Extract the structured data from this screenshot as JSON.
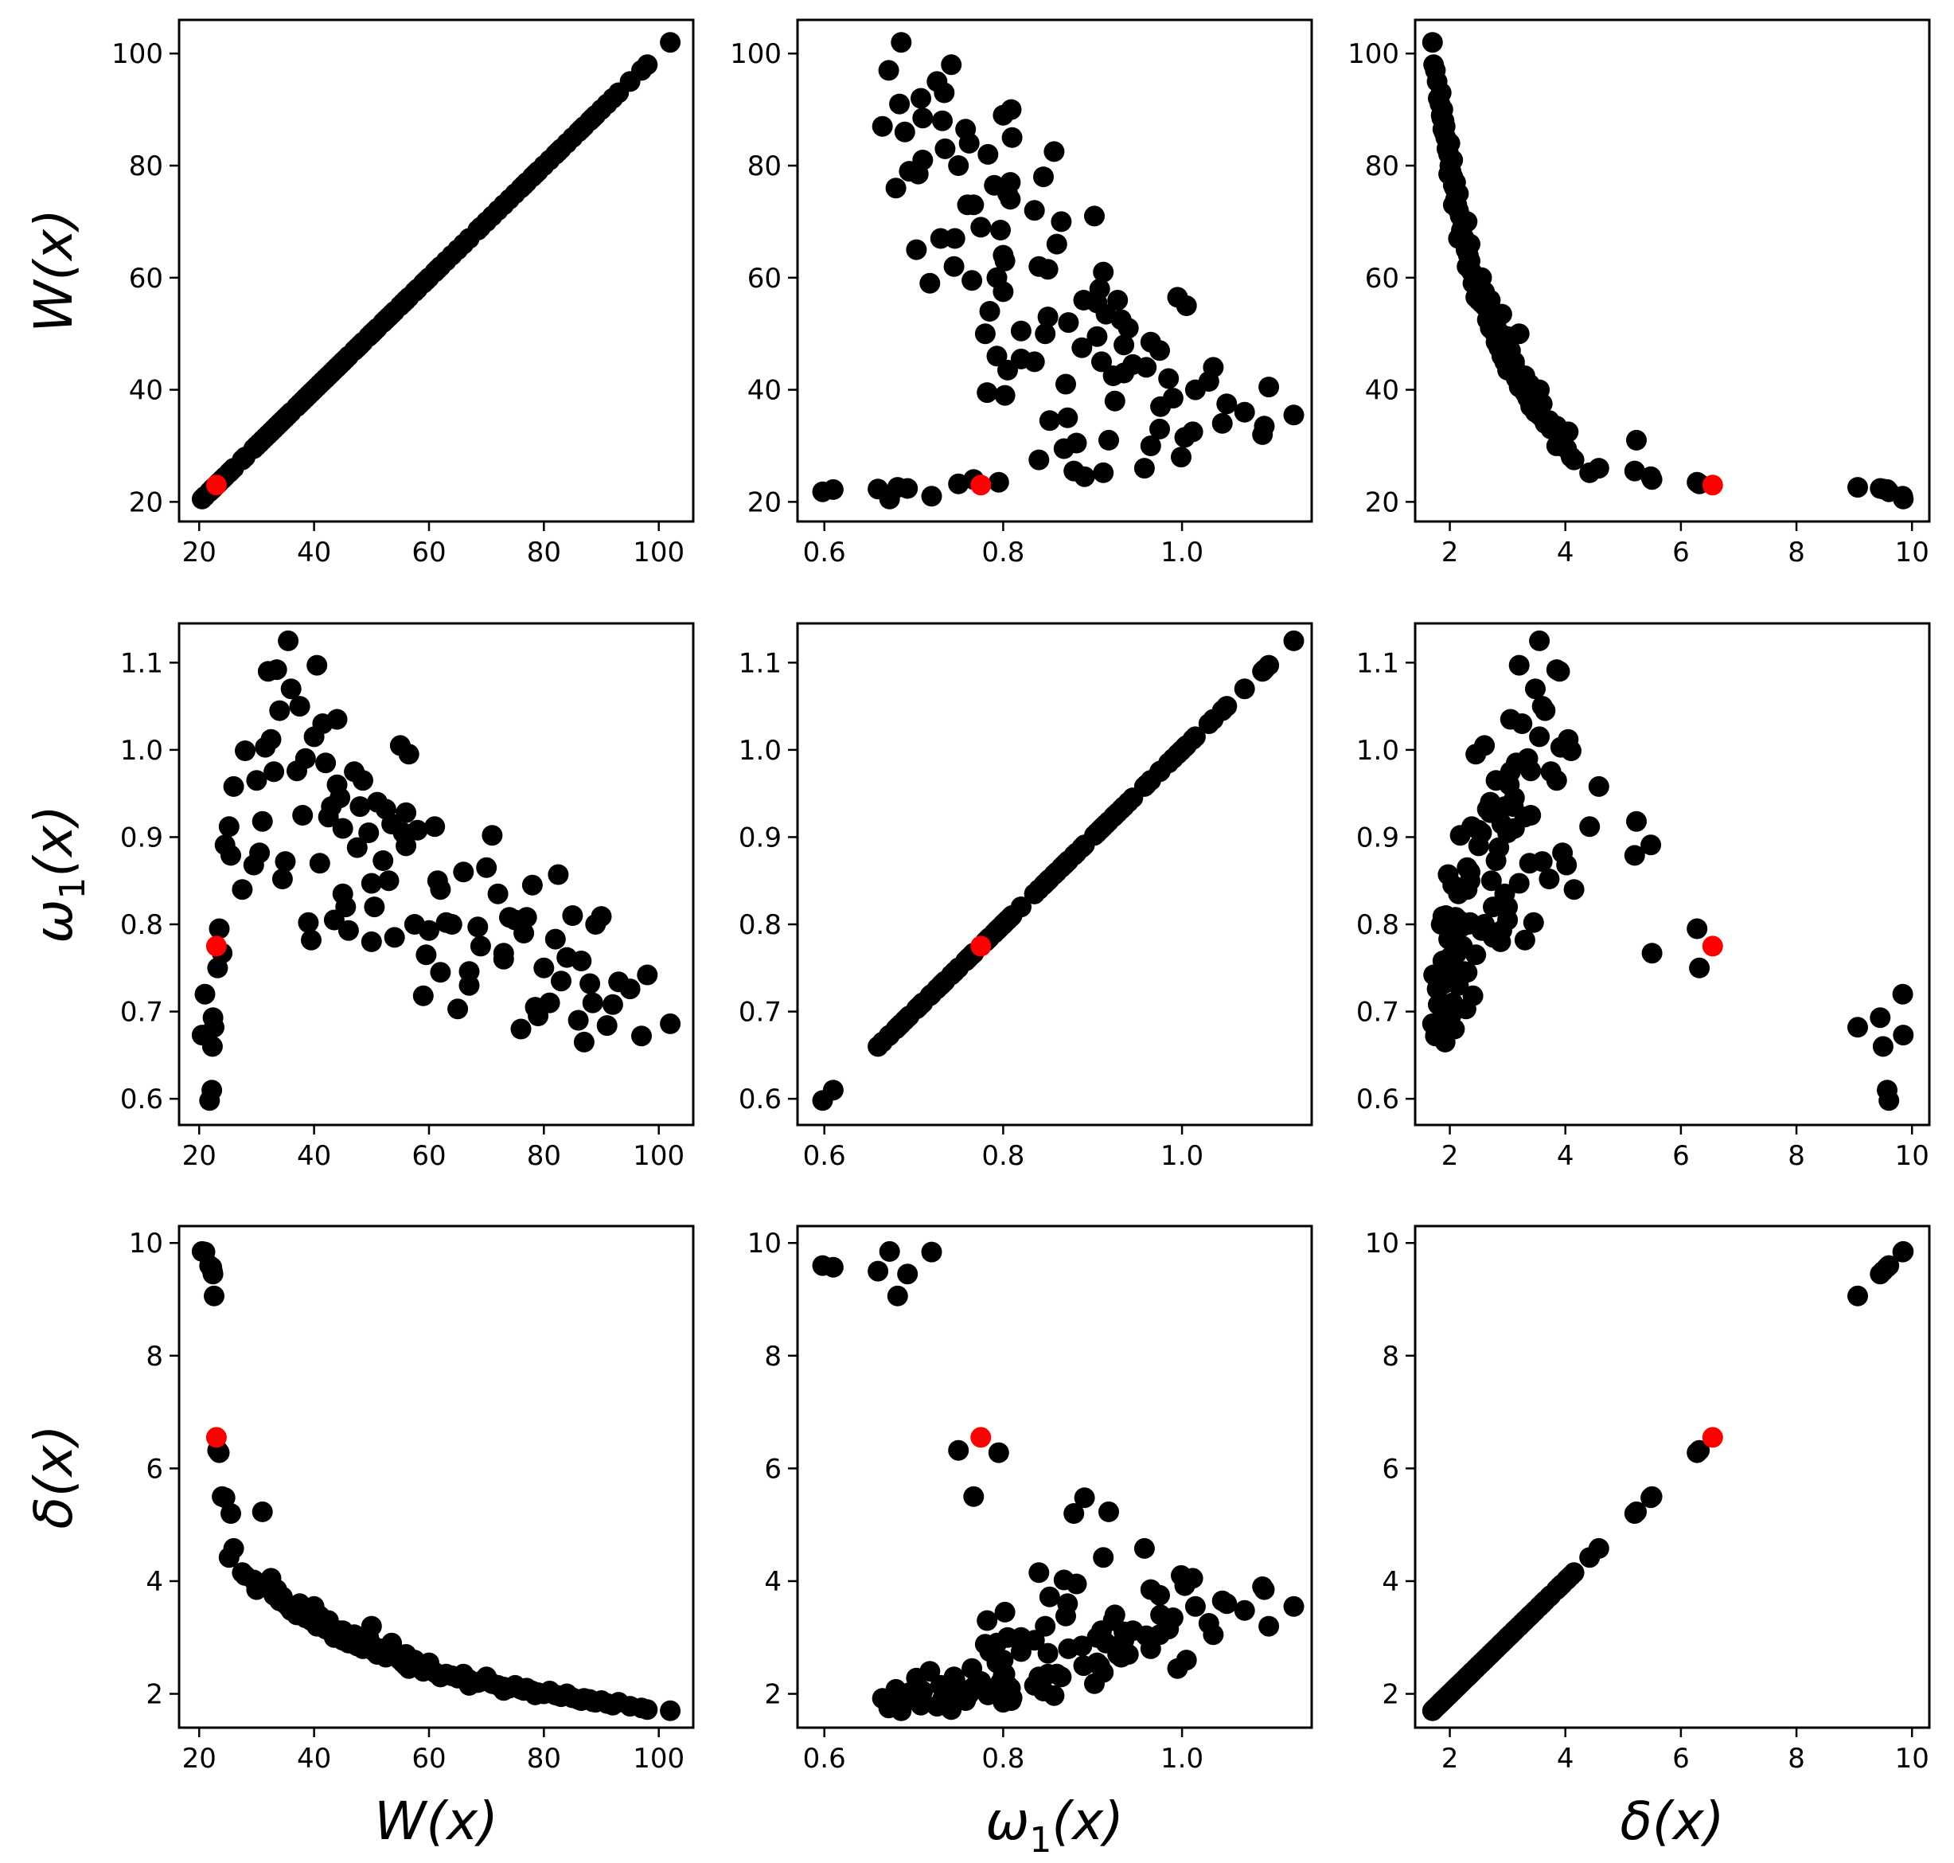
{
  "chart_data": {
    "type": "scatter",
    "layout": "3x3 scatter matrix",
    "variables": [
      "W(x)",
      "ω1(x)",
      "δ(x)"
    ],
    "variable_labels": {
      "W": {
        "main": "W",
        "sub": "",
        "arg": "(x)"
      },
      "w1": {
        "main": "ω",
        "sub": "1",
        "arg": "(x)"
      },
      "d": {
        "main": "δ",
        "sub": "",
        "arg": "(x)"
      }
    },
    "axes": {
      "W": {
        "range": [
          16.5,
          106
        ],
        "ticks": [
          20,
          40,
          60,
          80,
          100
        ],
        "tick_labels": [
          "20",
          "40",
          "60",
          "80",
          "100"
        ]
      },
      "w1": {
        "range": [
          0.57,
          1.145
        ],
        "ticks": [
          0.6,
          0.8,
          1.0
        ],
        "tick_labels": [
          "0.6",
          "0.8",
          "1.0"
        ],
        "y_ticks": [
          0.6,
          0.7,
          0.8,
          0.9,
          1.0,
          1.1
        ],
        "y_tick_labels": [
          "0.6",
          "0.7",
          "0.8",
          "0.9",
          "1.0",
          "1.1"
        ]
      },
      "d": {
        "range": [
          1.4,
          10.3
        ],
        "ticks": [
          2,
          4,
          6,
          8,
          10
        ],
        "tick_labels": [
          "2",
          "4",
          "6",
          "8",
          "10"
        ]
      }
    },
    "points_black": [
      [
        20.5,
        0.673,
        9.85
      ],
      [
        21.0,
        0.72,
        9.84
      ],
      [
        21.8,
        0.598,
        9.6
      ],
      [
        22.2,
        0.61,
        9.57
      ],
      [
        22.3,
        0.66,
        9.5
      ],
      [
        22.4,
        0.693,
        9.45
      ],
      [
        22.6,
        0.682,
        9.06
      ],
      [
        23.2,
        0.75,
        6.32
      ],
      [
        23.5,
        0.795,
        6.28
      ],
      [
        24.0,
        0.767,
        5.5
      ],
      [
        24.5,
        0.891,
        5.48
      ],
      [
        25.5,
        0.879,
        5.2
      ],
      [
        25.2,
        0.912,
        4.42
      ],
      [
        26.0,
        0.958,
        4.58
      ],
      [
        27.5,
        0.84,
        4.15
      ],
      [
        28.0,
        0.999,
        4.1
      ],
      [
        29.5,
        0.868,
        4.02
      ],
      [
        30.0,
        0.965,
        3.85
      ],
      [
        30.5,
        0.882,
        3.95
      ],
      [
        31.0,
        0.918,
        5.23
      ],
      [
        31.5,
        1.003,
        3.92
      ],
      [
        32.0,
        1.09,
        3.9
      ],
      [
        32.5,
        1.012,
        4.05
      ],
      [
        33.0,
        0.975,
        3.75
      ],
      [
        33.5,
        1.092,
        3.85
      ],
      [
        34.0,
        1.045,
        3.65
      ],
      [
        34.5,
        0.852,
        3.72
      ],
      [
        35.0,
        0.872,
        3.6
      ],
      [
        35.5,
        1.125,
        3.55
      ],
      [
        36.0,
        1.07,
        3.48
      ],
      [
        37.0,
        0.976,
        3.4
      ],
      [
        37.5,
        1.05,
        3.6
      ],
      [
        38.5,
        0.99,
        3.35
      ],
      [
        39.0,
        0.802,
        3.45
      ],
      [
        39.5,
        0.782,
        3.3
      ],
      [
        40.0,
        1.015,
        3.55
      ],
      [
        40.5,
        1.097,
        3.2
      ],
      [
        41.0,
        0.87,
        3.38
      ],
      [
        41.5,
        1.03,
        3.25
      ],
      [
        42.0,
        0.985,
        3.15
      ],
      [
        42.5,
        0.923,
        3.3
      ],
      [
        43.0,
        0.935,
        3.1
      ],
      [
        43.5,
        0.805,
        3.0
      ],
      [
        44.0,
        1.035,
        3.05
      ],
      [
        44.5,
        0.945,
        3.12
      ],
      [
        45.0,
        0.835,
        2.95
      ],
      [
        45.5,
        0.82,
        3.0
      ],
      [
        46.0,
        0.793,
        2.9
      ],
      [
        47.0,
        0.975,
        3.05
      ],
      [
        47.5,
        0.888,
        2.85
      ],
      [
        48.0,
        0.935,
        2.95
      ],
      [
        48.5,
        0.965,
        2.8
      ],
      [
        49.5,
        0.905,
        3.0
      ],
      [
        50.0,
        0.847,
        3.2
      ],
      [
        50.5,
        0.82,
        2.75
      ],
      [
        51.0,
        0.94,
        2.7
      ],
      [
        52.0,
        0.873,
        2.8
      ],
      [
        52.5,
        0.932,
        2.65
      ],
      [
        53.5,
        0.915,
        2.9
      ],
      [
        54.0,
        0.785,
        2.75
      ],
      [
        55.0,
        1.005,
        2.6
      ],
      [
        55.5,
        0.905,
        2.55
      ],
      [
        56.0,
        0.928,
        2.7
      ],
      [
        56.5,
        0.995,
        2.45
      ],
      [
        57.5,
        0.8,
        2.6
      ],
      [
        58.0,
        0.908,
        2.5
      ],
      [
        59.0,
        0.718,
        2.4
      ],
      [
        59.5,
        0.765,
        2.45
      ],
      [
        60.0,
        0.793,
        2.55
      ],
      [
        61.0,
        0.912,
        2.38
      ],
      [
        61.5,
        0.85,
        2.35
      ],
      [
        62.0,
        0.745,
        2.3
      ],
      [
        63.0,
        0.802,
        2.35
      ],
      [
        65.0,
        0.703,
        2.28
      ],
      [
        66.0,
        0.86,
        2.35
      ],
      [
        67.0,
        0.746,
        2.25
      ],
      [
        68.5,
        0.797,
        2.2
      ],
      [
        69.0,
        0.775,
        2.22
      ],
      [
        70.0,
        0.865,
        2.3
      ],
      [
        71.0,
        0.902,
        2.18
      ],
      [
        72.0,
        0.835,
        2.15
      ],
      [
        73.0,
        0.767,
        2.12
      ],
      [
        74.0,
        0.808,
        2.1
      ],
      [
        75.0,
        0.805,
        2.15
      ],
      [
        76.0,
        0.68,
        2.08
      ],
      [
        77.0,
        0.808,
        2.1
      ],
      [
        78.0,
        0.845,
        2.05
      ],
      [
        79.0,
        0.695,
        2.02
      ],
      [
        80.0,
        0.75,
        2.0
      ],
      [
        81.0,
        0.71,
        2.05
      ],
      [
        82.0,
        0.783,
        1.98
      ],
      [
        82.5,
        0.857,
        1.97
      ],
      [
        83.0,
        0.735,
        1.95
      ],
      [
        84.0,
        0.762,
        2.0
      ],
      [
        85.0,
        0.81,
        1.93
      ],
      [
        86.0,
        0.69,
        1.9
      ],
      [
        86.5,
        0.758,
        1.88
      ],
      [
        87.0,
        0.665,
        1.92
      ],
      [
        88.0,
        0.732,
        1.9
      ],
      [
        89.0,
        0.8,
        1.85
      ],
      [
        90.0,
        0.809,
        1.88
      ],
      [
        91.0,
        0.684,
        1.83
      ],
      [
        92.0,
        0.708,
        1.8
      ],
      [
        93.0,
        0.734,
        1.85
      ],
      [
        95.0,
        0.726,
        1.78
      ],
      [
        97.0,
        0.672,
        1.75
      ],
      [
        98.0,
        0.742,
        1.72
      ],
      [
        102.0,
        0.686,
        1.7
      ],
      [
        50.0,
        0.78,
        2.88
      ],
      [
        45.0,
        0.91,
        3.12
      ],
      [
        62.0,
        0.84,
        2.3
      ],
      [
        73.0,
        0.76,
        2.06
      ],
      [
        38.0,
        0.925,
        3.4
      ],
      [
        56.0,
        0.89,
        2.5
      ],
      [
        67.0,
        0.73,
        2.15
      ],
      [
        78.5,
        0.705,
        1.98
      ],
      [
        88.5,
        0.71,
        1.86
      ],
      [
        44.0,
        0.96,
        3.03
      ],
      [
        53.0,
        0.85,
        2.72
      ],
      [
        64.0,
        0.8,
        2.32
      ],
      [
        76.5,
        0.79,
        2.06
      ]
    ],
    "points_red": [
      [
        23.0,
        0.775,
        6.55
      ]
    ]
  }
}
